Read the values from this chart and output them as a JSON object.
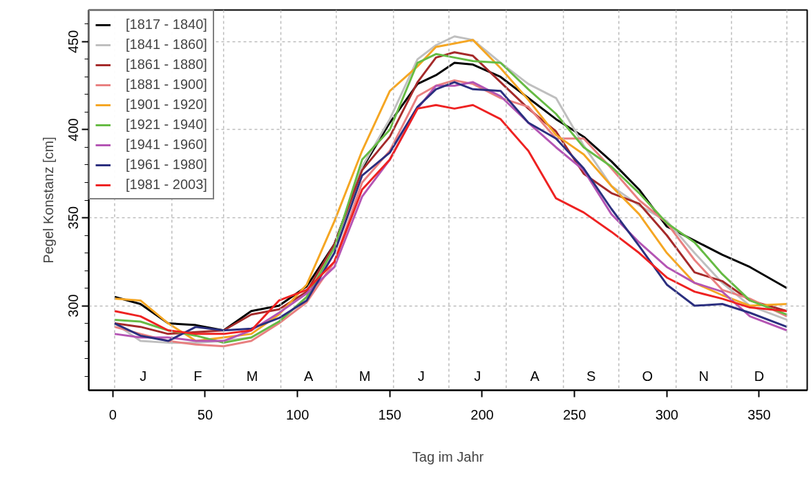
{
  "chart_data": {
    "type": "line",
    "xlabel": "Tag im Jahr",
    "ylabel": "Pegel Konstanz [cm]",
    "x": [
      1,
      15,
      30,
      45,
      60,
      75,
      90,
      105,
      120,
      135,
      150,
      165,
      175,
      185,
      195,
      210,
      225,
      240,
      255,
      270,
      285,
      300,
      315,
      330,
      345,
      365
    ],
    "series": [
      {
        "name": "[1817 - 1840]",
        "color": "#000000",
        "values": [
          305,
          301,
          290,
          289,
          286,
          297,
          300,
          311,
          335,
          378,
          404,
          426,
          431,
          438,
          437,
          430,
          418,
          406,
          396,
          382,
          366,
          345,
          337,
          329,
          322,
          310
        ]
      },
      {
        "name": "[1841 - 1860]",
        "color": "#bfbfbf",
        "values": [
          290,
          280,
          279,
          279,
          280,
          282,
          291,
          305,
          330,
          379,
          406,
          440,
          448,
          453,
          451,
          438,
          426,
          418,
          391,
          368,
          357,
          348,
          330,
          313,
          300,
          292
        ]
      },
      {
        "name": "[1861 - 1880]",
        "color": "#a52a2a",
        "values": [
          290,
          288,
          284,
          285,
          286,
          295,
          298,
          308,
          335,
          377,
          396,
          427,
          441,
          444,
          442,
          427,
          412,
          399,
          375,
          364,
          358,
          340,
          319,
          314,
          303,
          297
        ]
      },
      {
        "name": "[1881 - 1900]",
        "color": "#e98080",
        "values": [
          288,
          284,
          280,
          278,
          277,
          280,
          290,
          302,
          325,
          370,
          388,
          419,
          425,
          428,
          426,
          418,
          413,
          395,
          395,
          378,
          360,
          347,
          326,
          309,
          304,
          294
        ]
      },
      {
        "name": "[1901 - 1920]",
        "color": "#f5a623",
        "values": [
          304,
          303,
          290,
          280,
          282,
          284,
          295,
          312,
          348,
          388,
          422,
          436,
          447,
          449,
          451,
          435,
          417,
          397,
          386,
          368,
          352,
          330,
          313,
          306,
          300,
          301
        ]
      },
      {
        "name": "[1921 - 1940]",
        "color": "#66bb44",
        "values": [
          292,
          291,
          286,
          283,
          279,
          282,
          291,
          305,
          333,
          383,
          400,
          438,
          443,
          441,
          439,
          438,
          423,
          409,
          390,
          379,
          364,
          347,
          336,
          318,
          303,
          295
        ]
      },
      {
        "name": "[1941 - 1960]",
        "color": "#b455b4",
        "values": [
          284,
          282,
          282,
          280,
          280,
          286,
          296,
          307,
          322,
          362,
          383,
          412,
          425,
          425,
          427,
          419,
          404,
          390,
          377,
          352,
          336,
          322,
          313,
          308,
          294,
          286
        ]
      },
      {
        "name": "[1961 - 1980]",
        "color": "#2b2f7f",
        "values": [
          290,
          283,
          280,
          288,
          286,
          287,
          293,
          303,
          330,
          374,
          387,
          413,
          423,
          427,
          423,
          422,
          404,
          395,
          378,
          355,
          334,
          312,
          300,
          301,
          296,
          288
        ]
      },
      {
        "name": "[1981 - 2003]",
        "color": "#ee2222",
        "values": [
          297,
          294,
          286,
          284,
          284,
          286,
          303,
          309,
          325,
          366,
          383,
          412,
          414,
          412,
          414,
          406,
          388,
          361,
          353,
          342,
          330,
          316,
          308,
          304,
          299,
          297
        ]
      }
    ],
    "xlim": [
      -13,
      376
    ],
    "ylim": [
      252,
      468
    ],
    "xticks": [
      0,
      50,
      100,
      150,
      200,
      250,
      300,
      350
    ],
    "yticks": [
      {
        "value": 260,
        "label": null
      },
      {
        "value": 270,
        "label": null
      },
      {
        "value": 280,
        "label": null
      },
      {
        "value": 290,
        "label": null
      },
      300,
      {
        "value": 310,
        "label": null
      },
      {
        "value": 320,
        "label": null
      },
      {
        "value": 330,
        "label": null
      },
      {
        "value": 340,
        "label": null
      },
      350,
      {
        "value": 360,
        "label": null
      },
      {
        "value": 370,
        "label": null
      },
      {
        "value": 380,
        "label": null
      },
      {
        "value": 390,
        "label": null
      },
      400,
      {
        "value": 410,
        "label": null
      },
      {
        "value": 420,
        "label": null
      },
      {
        "value": 430,
        "label": null
      },
      {
        "value": 440,
        "label": null
      },
      450,
      {
        "value": 460,
        "label": null
      }
    ],
    "ref_lines": [
      {
        "axis": "x",
        "value": 1,
        "color": "#bbbbbb",
        "line_style": "dotted"
      },
      {
        "axis": "x",
        "value": 32,
        "color": "#bbbbbb",
        "line_style": "dotted"
      },
      {
        "axis": "x",
        "value": 60,
        "color": "#bbbbbb",
        "line_style": "dotted"
      },
      {
        "axis": "x",
        "value": 91,
        "color": "#bbbbbb",
        "line_style": "dotted"
      },
      {
        "axis": "x",
        "value": 121,
        "color": "#bbbbbb",
        "line_style": "dotted"
      },
      {
        "axis": "x",
        "value": 152,
        "color": "#bbbbbb",
        "line_style": "dotted"
      },
      {
        "axis": "x",
        "value": 182,
        "color": "#bbbbbb",
        "line_style": "dotted"
      },
      {
        "axis": "x",
        "value": 213,
        "color": "#bbbbbb",
        "line_style": "dotted"
      },
      {
        "axis": "x",
        "value": 244,
        "color": "#bbbbbb",
        "line_style": "dotted"
      },
      {
        "axis": "x",
        "value": 274,
        "color": "#bbbbbb",
        "line_style": "dotted"
      },
      {
        "axis": "x",
        "value": 305,
        "color": "#bbbbbb",
        "line_style": "dotted"
      },
      {
        "axis": "x",
        "value": 335,
        "color": "#bbbbbb",
        "line_style": "dotted"
      },
      {
        "axis": "x",
        "value": 365,
        "color": "#bbbbbb",
        "line_style": "dotted"
      }
    ],
    "annotations": [
      "J",
      "F",
      "M",
      "A",
      "M",
      "J",
      "J",
      "A",
      "S",
      "O",
      "N",
      "D"
    ],
    "grid": "y",
    "legend": "top left",
    "marker": "none",
    "line_style": "solid"
  }
}
